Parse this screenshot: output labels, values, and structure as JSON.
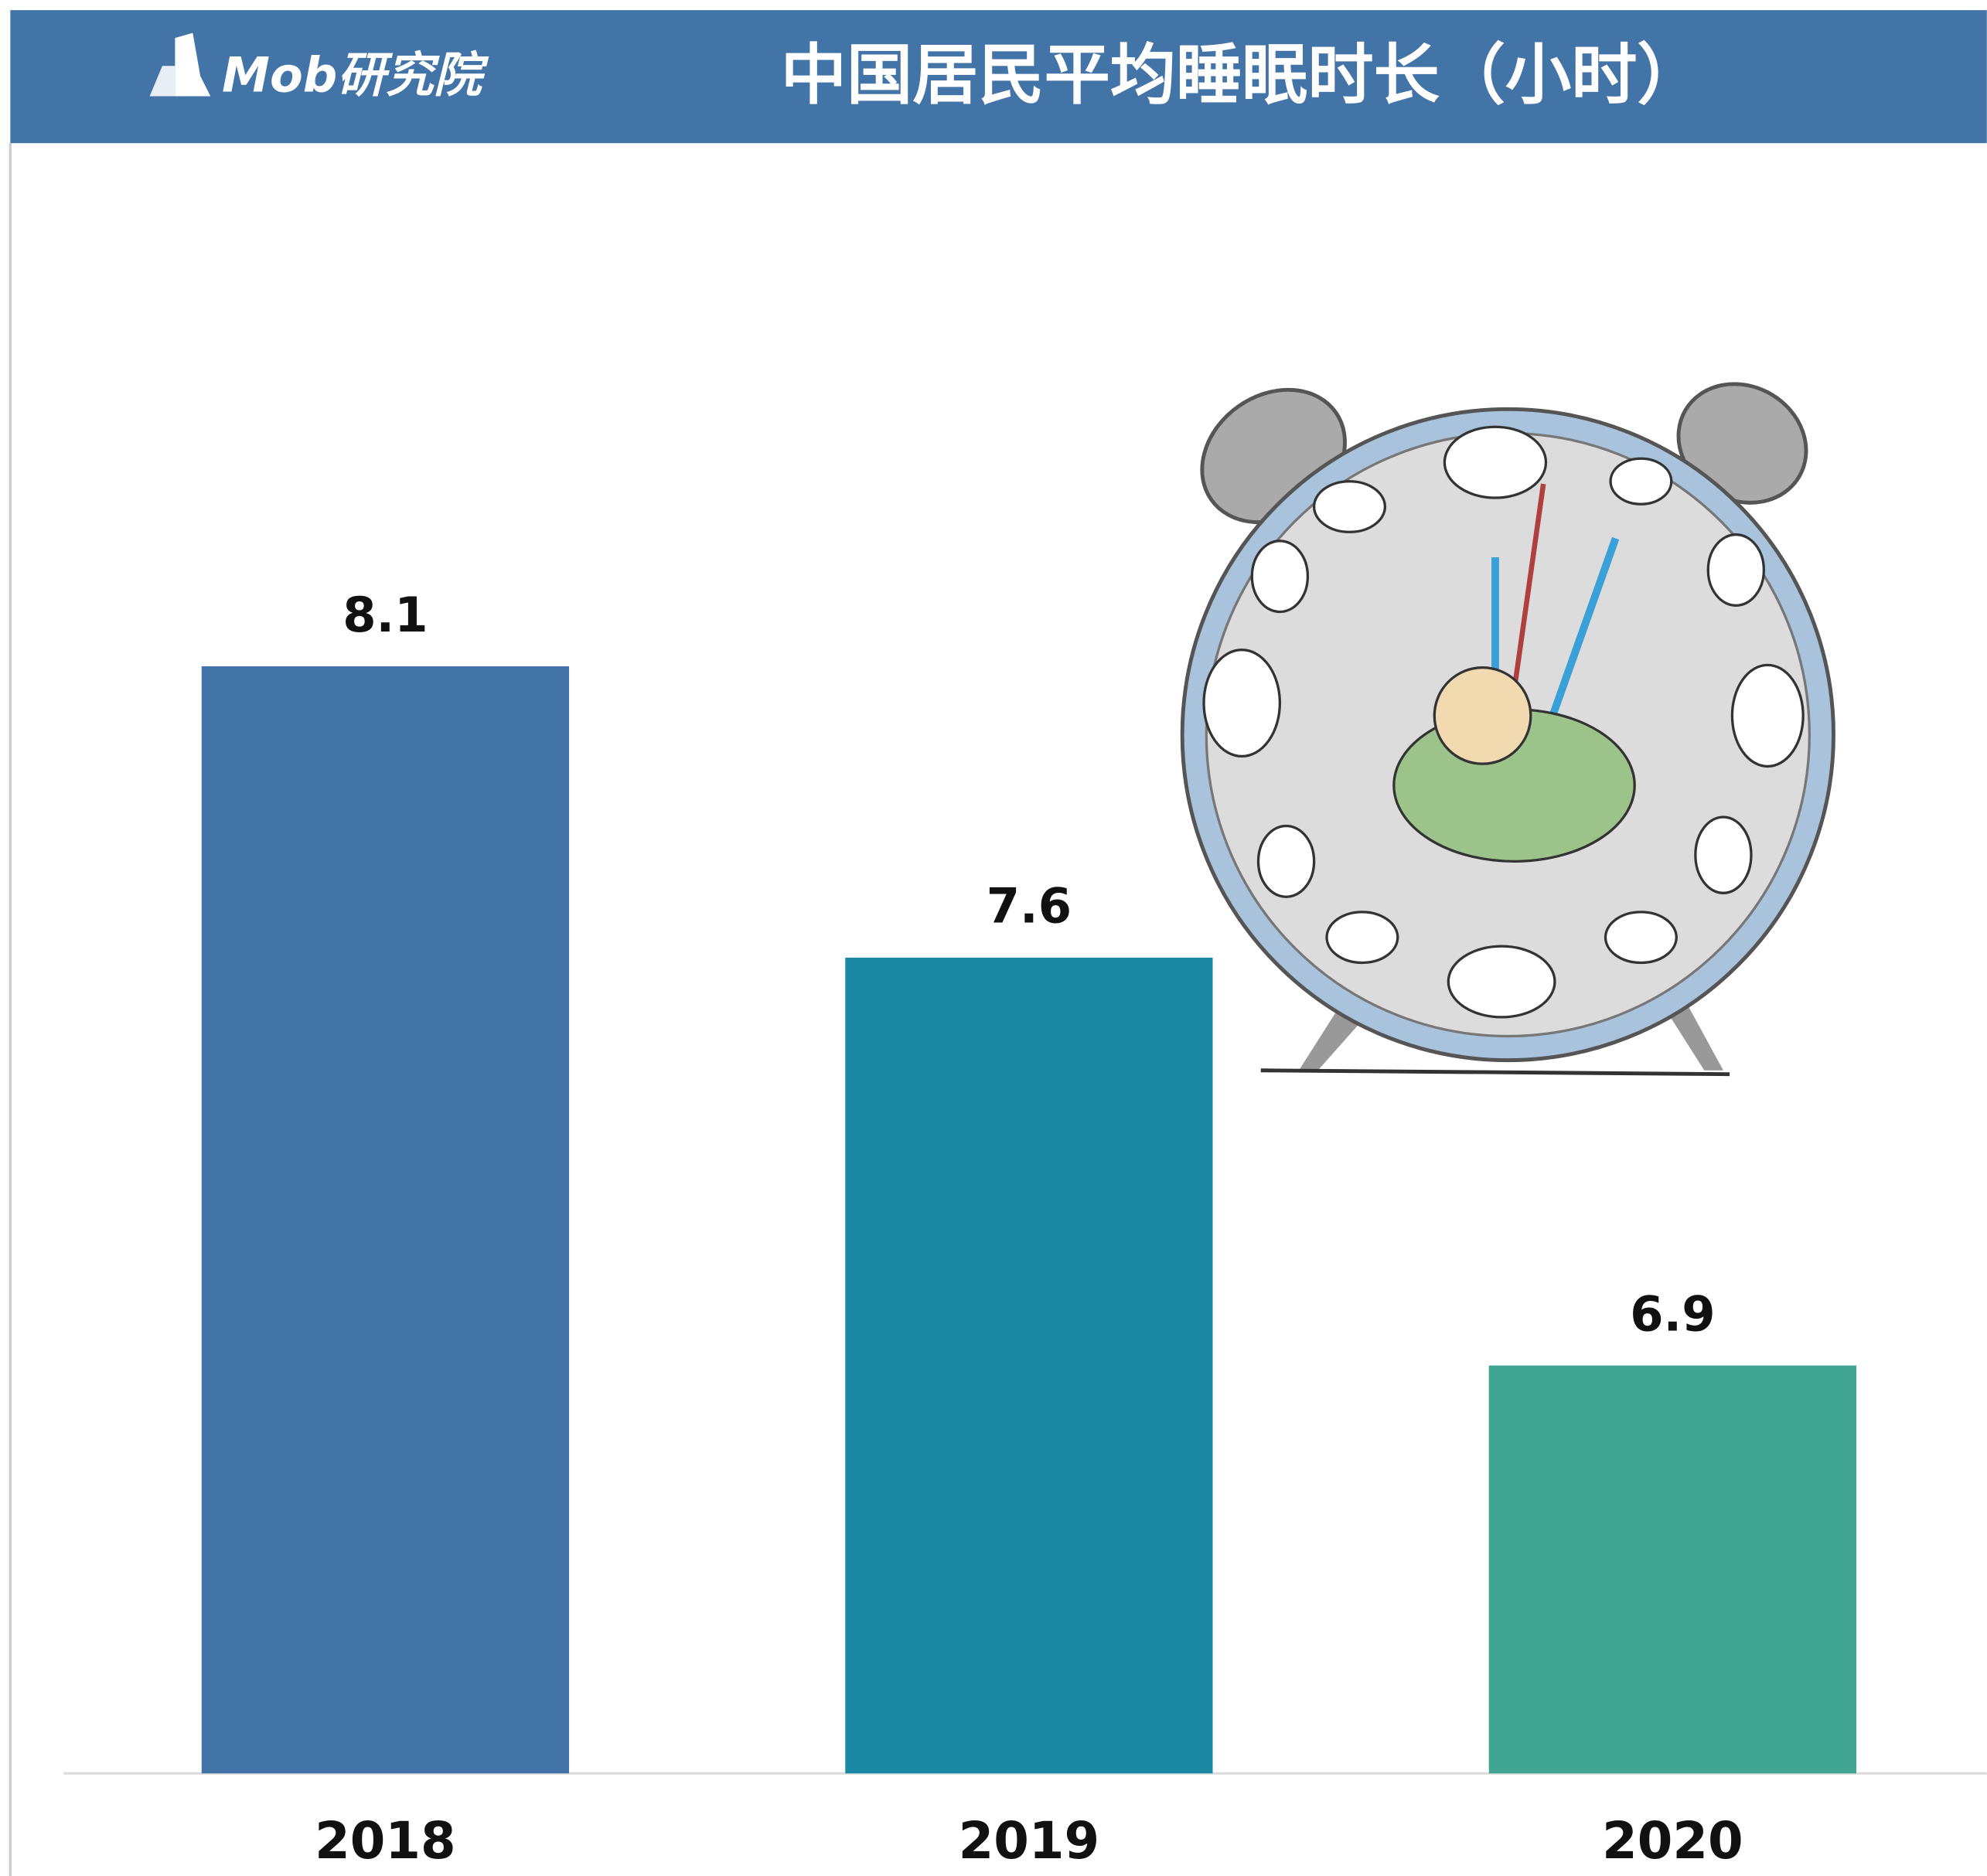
{
  "chart_data": {
    "type": "bar",
    "title": "中国居民平均睡眠时长（小时）",
    "logo": "Mob研究院",
    "categories": [
      "2018",
      "2019",
      "2020"
    ],
    "values": [
      8.1,
      7.6,
      6.9
    ],
    "colors": [
      "#4374a8",
      "#1a88a3",
      "#3fa592"
    ],
    "ylim": [
      6.2,
      8.5
    ],
    "grid": false
  }
}
